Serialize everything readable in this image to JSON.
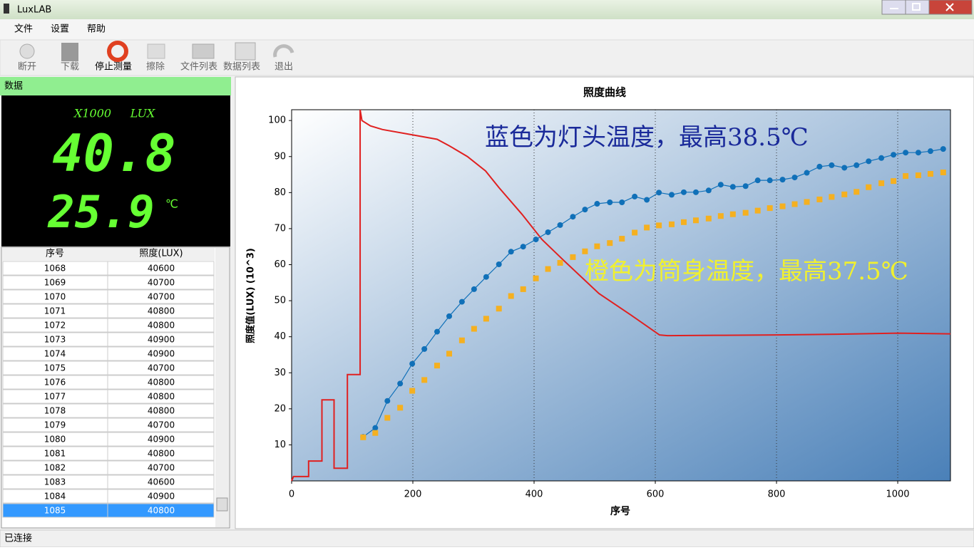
{
  "window": {
    "title": "LuxLAB"
  },
  "menu": [
    "文件",
    "设置",
    "帮助"
  ],
  "toolbar": [
    "断开",
    "下载",
    "停止测量",
    "擦除",
    "文件列表",
    "数据列表",
    "退出"
  ],
  "panel": {
    "title": "数据",
    "multiplier": "X1000",
    "unit": "LUX",
    "lux": 40.8,
    "temperature": 25.9,
    "temp_unit": "℃"
  },
  "table": {
    "header": [
      "序号",
      "照度(LUX)"
    ],
    "rows": [
      [
        1068,
        40600
      ],
      [
        1069,
        40700
      ],
      [
        1070,
        40700
      ],
      [
        1071,
        40800
      ],
      [
        1072,
        40800
      ],
      [
        1073,
        40900
      ],
      [
        1074,
        40900
      ],
      [
        1075,
        40700
      ],
      [
        1076,
        40800
      ],
      [
        1077,
        40800
      ],
      [
        1078,
        40800
      ],
      [
        1079,
        40700
      ],
      [
        1080,
        40900
      ],
      [
        1081,
        40800
      ],
      [
        1082,
        40700
      ],
      [
        1083,
        40600
      ],
      [
        1084,
        40900
      ],
      [
        1085,
        40800
      ]
    ]
  },
  "status": "已连接",
  "chart_data": {
    "type": "line",
    "title": "照度曲线",
    "x_label": "序号",
    "y_label": "照度值(LUX)  (10^3)",
    "xlim": [
      0,
      1087
    ],
    "ylim": [
      0,
      103
    ],
    "xticks": [
      0,
      200,
      400,
      600,
      800,
      1000
    ],
    "yticks": [
      10,
      20,
      30,
      40,
      50,
      60,
      70,
      80,
      90,
      100
    ],
    "grid": true,
    "annotations": [
      {
        "text": "蓝色为灯头温度，最高38.5℃",
        "color": "#1a2a9a"
      },
      {
        "text": "橙色为筒身温度，最高37.5℃",
        "color": "#f0f030"
      }
    ],
    "series": [
      {
        "color": "#e02020",
        "marker": "none",
        "x": [
          0,
          3,
          28,
          28,
          50,
          50,
          70,
          70,
          92,
          92,
          113,
          113,
          116,
          130,
          150,
          200,
          240,
          260,
          290,
          320,
          342,
          380,
          413,
          450,
          507,
          560,
          607,
          620,
          700,
          800,
          900,
          1000,
          1087
        ],
        "values": [
          0,
          1.2,
          1.2,
          5.5,
          5.5,
          22.5,
          22.5,
          3.5,
          3.5,
          29.5,
          29.5,
          103,
          100,
          98.5,
          97.5,
          96,
          94.8,
          93,
          90,
          86,
          81.4,
          74,
          67,
          61,
          52,
          46,
          40.5,
          40.3,
          40.4,
          40.5,
          40.7,
          41,
          40.8
        ]
      },
      {
        "color": "#1070b8",
        "marker": "circle",
        "x": [
          118,
          138,
          158,
          179,
          199,
          219,
          240,
          260,
          281,
          301,
          321,
          342,
          362,
          382,
          403,
          423,
          443,
          464,
          484,
          504,
          525,
          545,
          566,
          586,
          606,
          627,
          647,
          667,
          688,
          708,
          728,
          749,
          769,
          789,
          810,
          830,
          850,
          871,
          891,
          912,
          932,
          952,
          973,
          993,
          1013,
          1034,
          1054,
          1075
        ],
        "values": [
          12.2,
          14.7,
          22.2,
          27,
          32.5,
          36.6,
          41.4,
          45.7,
          49.7,
          53.2,
          56.6,
          60.1,
          63.6,
          65,
          67,
          69,
          71,
          73.3,
          75.3,
          76.9,
          77.3,
          77.3,
          78.9,
          78,
          80,
          79.4,
          80.1,
          80.1,
          80.6,
          82.2,
          81.6,
          81.8,
          83.4,
          83.4,
          83.6,
          84.2,
          85.5,
          87.2,
          87.6,
          86.9,
          87.6,
          88.7,
          89.6,
          90.5,
          91.1,
          91.1,
          91.5,
          92.1
        ]
      },
      {
        "color": "#f5b020",
        "marker": "square",
        "x": [
          118,
          138,
          158,
          179,
          199,
          219,
          240,
          260,
          281,
          301,
          321,
          342,
          362,
          382,
          403,
          423,
          443,
          464,
          484,
          504,
          525,
          545,
          566,
          586,
          606,
          627,
          647,
          667,
          688,
          708,
          728,
          749,
          769,
          789,
          810,
          830,
          850,
          871,
          891,
          912,
          932,
          952,
          973,
          993,
          1013,
          1034,
          1054,
          1075
        ],
        "values": [
          12.1,
          13.3,
          17.5,
          20.3,
          25,
          28,
          32,
          35.3,
          39,
          42.2,
          45,
          47.8,
          51.3,
          53.2,
          56.2,
          58.8,
          60.5,
          62.1,
          63.7,
          65.1,
          66,
          67.2,
          68.9,
          70.3,
          70.9,
          71.2,
          71.8,
          72.3,
          72.8,
          73.5,
          74,
          74.4,
          75,
          75.7,
          76.2,
          76.8,
          77.4,
          78.1,
          78.8,
          79.5,
          80.2,
          81.5,
          82.6,
          83.2,
          84.6,
          84.8,
          85.2,
          85.6
        ]
      }
    ]
  }
}
